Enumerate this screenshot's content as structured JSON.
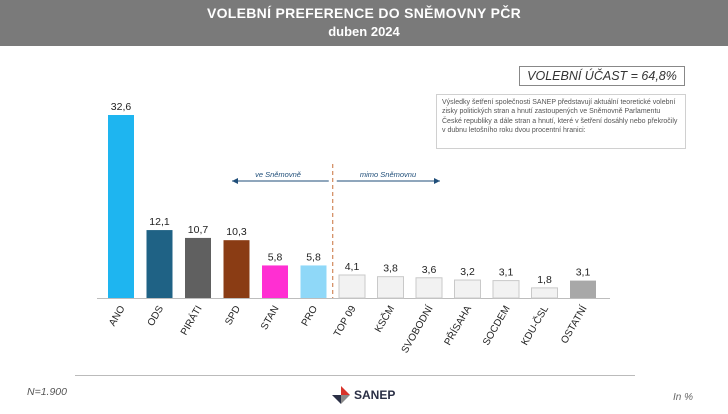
{
  "header": {
    "title": "VOLEBNÍ PREFERENCE DO SNĚMOVNY PČR",
    "subtitle": "duben 2024"
  },
  "turnout": "VOLEBNÍ ÚČAST = 64,8%",
  "note": "Výsledky šetření společnosti SANEP představují aktuální teoretické volební zisky politických stran a hnutí zastoupených ve Sněmovně Parlamentu České republiky a dále stran a hnutí, které v šetření dosáhly nebo překročily v dubnu letošního roku dvou procentní hranici:",
  "footer": {
    "sample": "N=1.900",
    "unit": "In %",
    "logo_text": "SANEP"
  },
  "colors": {
    "header_bg": "#7a7a7a",
    "divider": "#c8703a",
    "arrow": "#1f4e79"
  },
  "chart_data": {
    "type": "bar",
    "categories": [
      "ANO",
      "ODS",
      "PIRÁTI",
      "SPD",
      "STAN",
      "PRO",
      "TOP 09",
      "KSČM",
      "SVOBODNÍ",
      "PŘÍSAHA",
      "SOCDEM",
      "KDU-ČSL",
      "OSTATNÍ"
    ],
    "values": [
      32.6,
      12.1,
      10.7,
      10.3,
      5.8,
      5.8,
      4.1,
      3.8,
      3.6,
      3.2,
      3.1,
      1.8,
      3.1
    ],
    "value_labels": [
      "32,6",
      "12,1",
      "10,7",
      "10,3",
      "5,8",
      "5,8",
      "4,1",
      "3,8",
      "3,6",
      "3,2",
      "3,1",
      "1,8",
      "3,1"
    ],
    "colors": [
      "#1eb5f0",
      "#1f6285",
      "#606060",
      "#8a3c14",
      "#ff2fd2",
      "#8fd8f8",
      "#f2f2f2",
      "#f2f2f2",
      "#f2f2f2",
      "#f2f2f2",
      "#f2f2f2",
      "#f2f2f2",
      "#a8a8a8"
    ],
    "ylim": [
      0,
      34
    ],
    "annotations": {
      "in_parliament": "ve Sněmovně",
      "outside_parliament": "mimo Sněmovnu"
    }
  }
}
